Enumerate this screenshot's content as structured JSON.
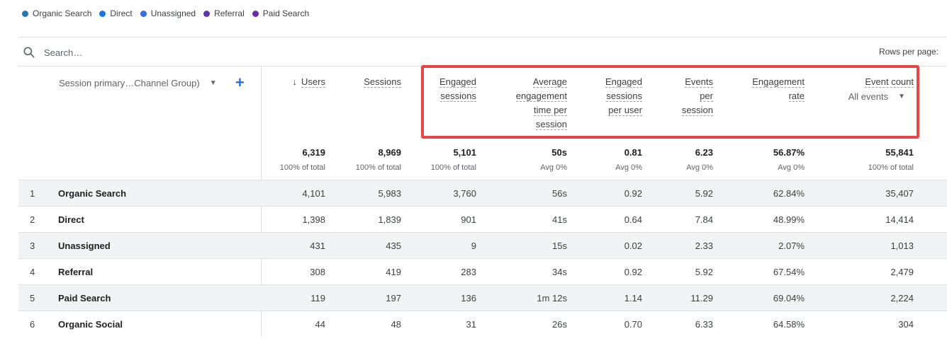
{
  "legend": [
    {
      "label": "Organic Search",
      "color": "#1f77b4"
    },
    {
      "label": "Direct",
      "color": "#1a73e8"
    },
    {
      "label": "Unassigned",
      "color": "#2f6fde"
    },
    {
      "label": "Referral",
      "color": "#5e35b1"
    },
    {
      "label": "Paid Search",
      "color": "#6a2ba8"
    }
  ],
  "search": {
    "placeholder": "Search…"
  },
  "rows_per_page_label": "Rows per page:",
  "dimension": {
    "label": "Session primary…Channel Group)",
    "add_label": "+"
  },
  "columns": [
    {
      "lines": [
        "Users"
      ],
      "sorted": true,
      "sort_icon": "↓"
    },
    {
      "lines": [
        "Sessions"
      ]
    },
    {
      "lines": [
        "Engaged",
        "sessions"
      ]
    },
    {
      "lines": [
        "Average",
        "engagement",
        "time per",
        "session"
      ]
    },
    {
      "lines": [
        "Engaged",
        "sessions",
        "per user"
      ]
    },
    {
      "lines": [
        "Events",
        "per",
        "session"
      ]
    },
    {
      "lines": [
        "Engagement",
        "rate"
      ]
    },
    {
      "lines": [
        "Event count"
      ],
      "selector": "All events"
    }
  ],
  "totals": [
    {
      "value": "6,319",
      "sub": "100% of total"
    },
    {
      "value": "8,969",
      "sub": "100% of total"
    },
    {
      "value": "5,101",
      "sub": "100% of total"
    },
    {
      "value": "50s",
      "sub": "Avg 0%"
    },
    {
      "value": "0.81",
      "sub": "Avg 0%"
    },
    {
      "value": "6.23",
      "sub": "Avg 0%"
    },
    {
      "value": "56.87%",
      "sub": "Avg 0%"
    },
    {
      "value": "55,841",
      "sub": "100% of total"
    }
  ],
  "rows": [
    {
      "num": "1",
      "name": "Organic Search",
      "values": [
        "4,101",
        "5,983",
        "3,760",
        "56s",
        "0.92",
        "5.92",
        "62.84%",
        "35,407"
      ]
    },
    {
      "num": "2",
      "name": "Direct",
      "values": [
        "1,398",
        "1,839",
        "901",
        "41s",
        "0.64",
        "7.84",
        "48.99%",
        "14,414"
      ]
    },
    {
      "num": "3",
      "name": "Unassigned",
      "values": [
        "431",
        "435",
        "9",
        "15s",
        "0.02",
        "2.33",
        "2.07%",
        "1,013"
      ]
    },
    {
      "num": "4",
      "name": "Referral",
      "values": [
        "308",
        "419",
        "283",
        "34s",
        "0.92",
        "5.92",
        "67.54%",
        "2,479"
      ]
    },
    {
      "num": "5",
      "name": "Paid Search",
      "values": [
        "119",
        "197",
        "136",
        "1m 12s",
        "1.14",
        "11.29",
        "69.04%",
        "2,224"
      ]
    },
    {
      "num": "6",
      "name": "Organic Social",
      "values": [
        "44",
        "48",
        "31",
        "26s",
        "0.70",
        "6.33",
        "64.58%",
        "304"
      ]
    }
  ],
  "colors": {
    "highlight": "#e94545",
    "accent": "#1a73e8"
  }
}
